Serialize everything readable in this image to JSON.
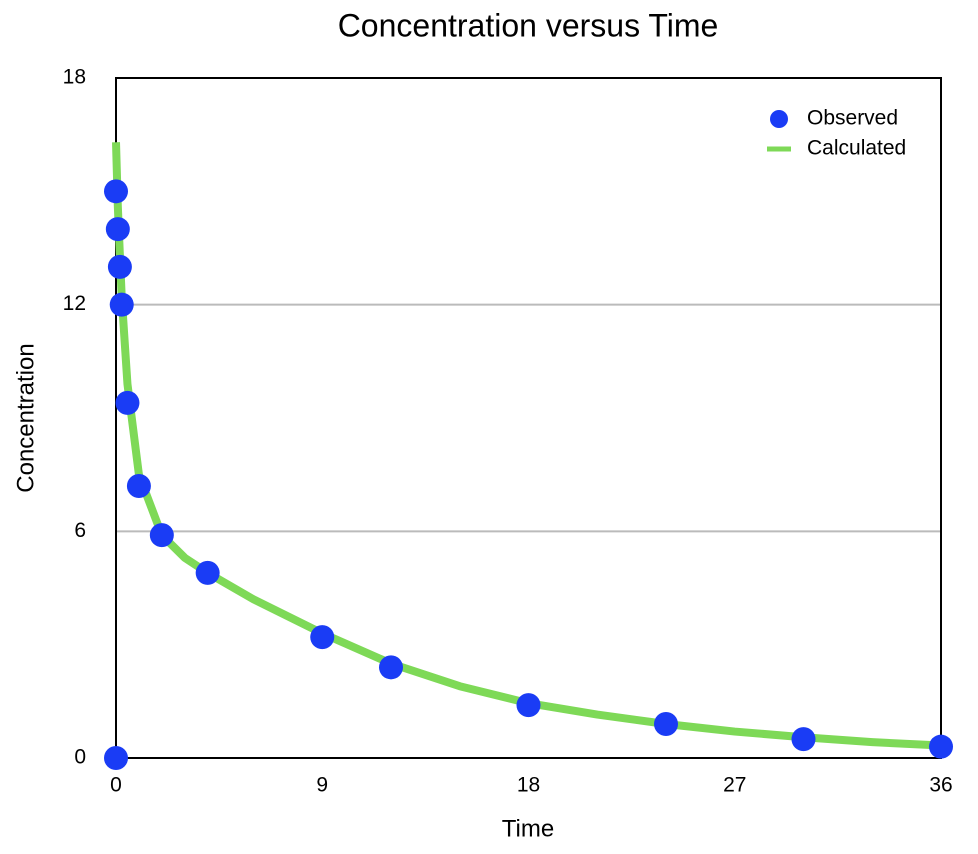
{
  "chart_data": {
    "type": "scatter",
    "title": "Concentration versus Time",
    "x_label": "Time",
    "y_label": "Concentration",
    "series": [
      {
        "name": "Observed",
        "type": "scatter",
        "color": "#1a3cf5",
        "x": [
          0,
          0,
          0.08,
          0.17,
          0.25,
          0.5,
          1,
          2,
          4,
          9,
          12,
          18,
          24,
          30,
          36
        ],
        "values": [
          0,
          15,
          14,
          13,
          12,
          9.4,
          7.2,
          5.9,
          4.9,
          3.2,
          2.4,
          1.4,
          0.9,
          0.5,
          0.3
        ]
      },
      {
        "name": "Calculated",
        "type": "line",
        "color": "#7ed957",
        "x": [
          0,
          0.08,
          0.17,
          0.25,
          0.5,
          1,
          2,
          3,
          4,
          6,
          9,
          12,
          15,
          18,
          21,
          24,
          27,
          30,
          33,
          36
        ],
        "values": [
          16.3,
          14.6,
          13.3,
          12.2,
          9.9,
          7.5,
          5.9,
          5.3,
          4.9,
          4.2,
          3.3,
          2.5,
          1.9,
          1.45,
          1.15,
          0.9,
          0.7,
          0.55,
          0.42,
          0.33
        ]
      }
    ],
    "xlim": [
      0,
      36
    ],
    "xticks": [
      0,
      9,
      18,
      27,
      36
    ],
    "ylim": [
      0,
      18
    ],
    "yticks": [
      0,
      6,
      12,
      18
    ],
    "grid": true,
    "legend": "upper right"
  }
}
